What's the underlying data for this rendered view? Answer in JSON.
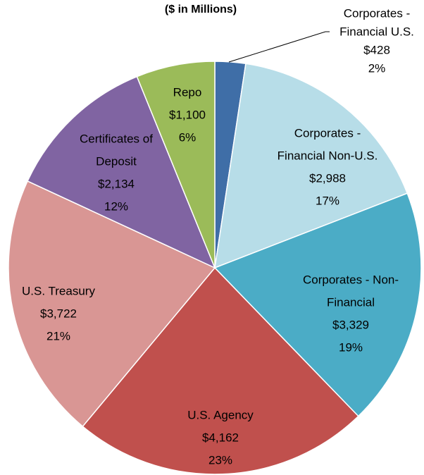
{
  "chart_data": {
    "type": "pie",
    "subtitle": "($ in Millions)",
    "categories": [
      [
        "Corporates -",
        "Financial U.S."
      ],
      [
        "Corporates -",
        "Financial Non-U.S."
      ],
      [
        "Corporates - Non-",
        "Financial"
      ],
      [
        "U.S. Agency"
      ],
      [
        "U.S. Treasury"
      ],
      [
        "Certificates of",
        "Deposit"
      ],
      [
        "Repo"
      ]
    ],
    "values": [
      428,
      2988,
      3329,
      4162,
      3722,
      2134,
      1100
    ],
    "value_labels": [
      "$428",
      "$2,988",
      "$3,329",
      "$4,162",
      "$3,722",
      "$2,134",
      "$1,100"
    ],
    "percent_labels": [
      "2%",
      "17%",
      "19%",
      "23%",
      "21%",
      "12%",
      "6%"
    ],
    "colors": [
      "#3f6ea7",
      "#b7dde8",
      "#4bacc6",
      "#c0504d",
      "#d99694",
      "#8064a2",
      "#9bbb59"
    ]
  }
}
